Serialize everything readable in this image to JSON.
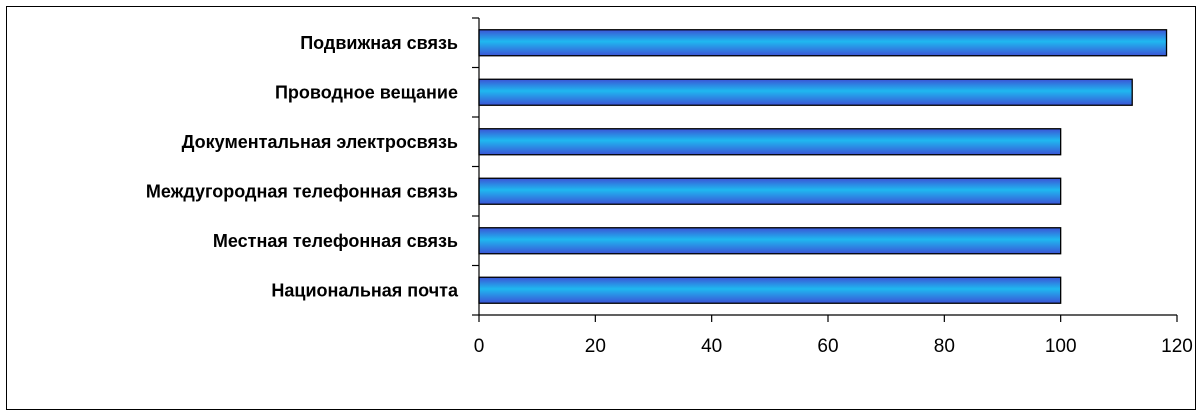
{
  "chart_data": {
    "type": "bar",
    "orientation": "horizontal",
    "title": "",
    "xlabel": "",
    "ylabel": "",
    "categories": [
      "Подвижная связь",
      "Проводное вещание",
      "Документальная электросвязь",
      "Междугородная телефонная связь",
      "Местная телефонная связь",
      "Национальная почта"
    ],
    "values": [
      118.2,
      112.3,
      100,
      100,
      100,
      100
    ],
    "xlim": [
      0,
      120
    ],
    "xticks": [
      0,
      20,
      40,
      60,
      80,
      100,
      120
    ],
    "grid": false,
    "legend": "none",
    "bar_color": "#1fb8f0",
    "bar_color_dark": "#3b54d6",
    "bar_edge_color": "#000000"
  }
}
